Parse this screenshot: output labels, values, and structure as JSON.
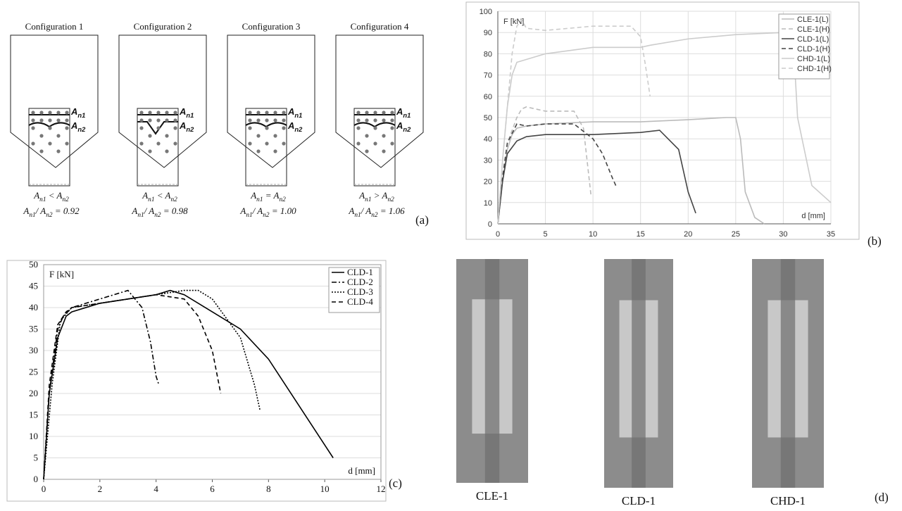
{
  "panel_labels": [
    "(a)",
    "(b)",
    "(c)",
    "(d)"
  ],
  "configurations": [
    {
      "title": "Configuration 1",
      "upper_label": [
        {
          "text": "A"
        },
        {
          "sub": "n1"
        }
      ],
      "lower_label": [
        {
          "text": "A"
        },
        {
          "sub": "n2"
        }
      ],
      "relation": [
        {
          "text": "A"
        },
        {
          "sub": "n1"
        },
        {
          "text": " < A"
        },
        {
          "sub": "n2"
        }
      ],
      "ratio": [
        {
          "text": "A"
        },
        {
          "sub": "n1"
        },
        {
          "text": "/ A"
        },
        {
          "sub": "n2"
        },
        {
          "text": " = 0.92"
        }
      ]
    },
    {
      "title": "Configuration 2",
      "upper_label": [
        {
          "text": "A"
        },
        {
          "sub": "n1"
        }
      ],
      "lower_label": [
        {
          "text": "A"
        },
        {
          "sub": "n2"
        }
      ],
      "relation": [
        {
          "text": "A"
        },
        {
          "sub": "n1"
        },
        {
          "text": " < A"
        },
        {
          "sub": "n2"
        }
      ],
      "ratio": [
        {
          "text": "A"
        },
        {
          "sub": "n1"
        },
        {
          "text": "/ A"
        },
        {
          "sub": "n2"
        },
        {
          "text": " = 0.98"
        }
      ]
    },
    {
      "title": "Configuration 3",
      "upper_label": [
        {
          "text": "A"
        },
        {
          "sub": "n1"
        }
      ],
      "lower_label": [
        {
          "text": "A"
        },
        {
          "sub": "n2"
        }
      ],
      "relation": [
        {
          "text": "A"
        },
        {
          "sub": "n1"
        },
        {
          "text": " = A"
        },
        {
          "sub": "n2"
        }
      ],
      "ratio": [
        {
          "text": "A"
        },
        {
          "sub": "n1"
        },
        {
          "text": "/ A"
        },
        {
          "sub": "n2"
        },
        {
          "text": " = 1.00"
        }
      ]
    },
    {
      "title": "Configuration 4",
      "upper_label": [
        {
          "text": "A"
        },
        {
          "sub": "n1"
        }
      ],
      "lower_label": [
        {
          "text": "A"
        },
        {
          "sub": "n2"
        }
      ],
      "relation": [
        {
          "text": "A"
        },
        {
          "sub": "n1"
        },
        {
          "text": " > A"
        },
        {
          "sub": "n2"
        }
      ],
      "ratio": [
        {
          "text": "A"
        },
        {
          "sub": "n1"
        },
        {
          "text": "/ A"
        },
        {
          "sub": "n2"
        },
        {
          "text": " = 1.06"
        }
      ]
    }
  ],
  "photos": [
    {
      "caption": "CLE-1"
    },
    {
      "caption": "CLD-1"
    },
    {
      "caption": "CHD-1"
    }
  ],
  "chart_data": [
    {
      "type": "line",
      "ylabel": "F [kN]",
      "xlabel": "d [mm]",
      "xlim": [
        0,
        35
      ],
      "xticks": [
        0,
        5,
        10,
        15,
        20,
        25,
        30,
        35
      ],
      "ylim": [
        0,
        100
      ],
      "yticks": [
        0,
        10,
        20,
        30,
        40,
        50,
        60,
        70,
        80,
        90,
        100
      ],
      "grid": true,
      "xgrid": true,
      "legend": "top-right",
      "series": [
        {
          "name": "CLE-1(L)",
          "color": "#bbbbbb",
          "dash": "solid",
          "x": [
            0,
            0.5,
            1,
            1.5,
            2,
            3,
            5,
            10,
            15,
            20,
            24,
            25,
            25.5,
            26,
            27,
            28
          ],
          "values": [
            0,
            20,
            35,
            42,
            45,
            46,
            47,
            48,
            48,
            49,
            50,
            50,
            40,
            15,
            3,
            0
          ]
        },
        {
          "name": "CLE-1(H)",
          "color": "#bbbbbb",
          "dash": "dashed",
          "x": [
            0,
            0.5,
            1,
            2,
            2.5,
            3,
            5,
            8,
            9,
            9.5,
            9.8
          ],
          "values": [
            0,
            22,
            38,
            50,
            54,
            55,
            53,
            53,
            45,
            25,
            13
          ]
        },
        {
          "name": "CLD-1(L)",
          "color": "#444444",
          "dash": "solid",
          "x": [
            0,
            0.5,
            1,
            2,
            3,
            5,
            10,
            15,
            17,
            19,
            20,
            20.8
          ],
          "values": [
            0,
            20,
            33,
            39,
            41,
            42,
            42,
            43,
            44,
            35,
            15,
            5
          ]
        },
        {
          "name": "CLD-1(H)",
          "color": "#444444",
          "dash": "dashed",
          "x": [
            0,
            0.5,
            1,
            2,
            3,
            5,
            8,
            10,
            11,
            12,
            12.5
          ],
          "values": [
            0,
            22,
            38,
            47,
            46,
            47,
            47,
            40,
            33,
            22,
            17
          ]
        },
        {
          "name": "CHD-1(L)",
          "color": "#cccccc",
          "dash": "solid",
          "x": [
            0,
            0.5,
            1,
            1.5,
            2,
            5,
            10,
            15,
            16,
            20,
            25,
            30,
            31,
            31.5,
            33,
            35
          ],
          "values": [
            0,
            30,
            55,
            70,
            76,
            80,
            83,
            83,
            84,
            87,
            89,
            90,
            90,
            50,
            18,
            10
          ]
        },
        {
          "name": "CHD-1(H)",
          "color": "#cccccc",
          "dash": "dashed",
          "x": [
            0,
            0.5,
            1,
            1.5,
            2,
            2.5,
            3,
            5,
            10,
            14,
            15,
            15.5,
            16
          ],
          "values": [
            0,
            30,
            55,
            80,
            93,
            96,
            92,
            91,
            93,
            93,
            88,
            75,
            60
          ]
        }
      ]
    },
    {
      "type": "line",
      "ylabel": "F [kN]",
      "xlabel": "d [mm]",
      "xlim": [
        0,
        12
      ],
      "xticks": [
        0,
        2,
        4,
        6,
        8,
        10,
        12
      ],
      "ylim": [
        0,
        50
      ],
      "yticks": [
        0,
        5,
        10,
        15,
        20,
        25,
        30,
        35,
        40,
        45,
        50
      ],
      "grid": true,
      "xgrid": false,
      "legend": "top-right",
      "series": [
        {
          "name": "CLD-1",
          "color": "#000000",
          "dash": "solid",
          "x": [
            0,
            0.2,
            0.5,
            0.8,
            1,
            2,
            3,
            4,
            4.5,
            5,
            6,
            7,
            8,
            9,
            10,
            10.3
          ],
          "values": [
            0,
            20,
            33,
            38,
            39,
            41,
            42,
            43,
            44,
            43,
            39,
            35,
            28,
            18,
            8,
            5
          ]
        },
        {
          "name": "CLD-2",
          "color": "#000000",
          "dash": "dashdot",
          "x": [
            0,
            0.2,
            0.5,
            0.7,
            1,
            2,
            3,
            3.5,
            3.8,
            4,
            4.1
          ],
          "values": [
            0,
            20,
            35,
            38,
            40,
            42,
            44,
            40,
            32,
            24,
            22
          ]
        },
        {
          "name": "CLD-3",
          "color": "#000000",
          "dash": "dotted",
          "x": [
            0,
            0.3,
            0.6,
            1,
            2,
            3,
            4,
            5,
            5.5,
            6,
            7,
            7.5,
            7.7
          ],
          "values": [
            0,
            22,
            37,
            40,
            41,
            42,
            43,
            44,
            44,
            42,
            33,
            22,
            16
          ]
        },
        {
          "name": "CLD-4",
          "color": "#000000",
          "dash": "dashed",
          "x": [
            0,
            0.2,
            0.5,
            0.8,
            1,
            2,
            3,
            4,
            5,
            5.5,
            6,
            6.3
          ],
          "values": [
            0,
            22,
            36,
            39,
            40,
            41,
            42,
            43,
            42,
            38,
            30,
            20
          ]
        }
      ]
    }
  ]
}
